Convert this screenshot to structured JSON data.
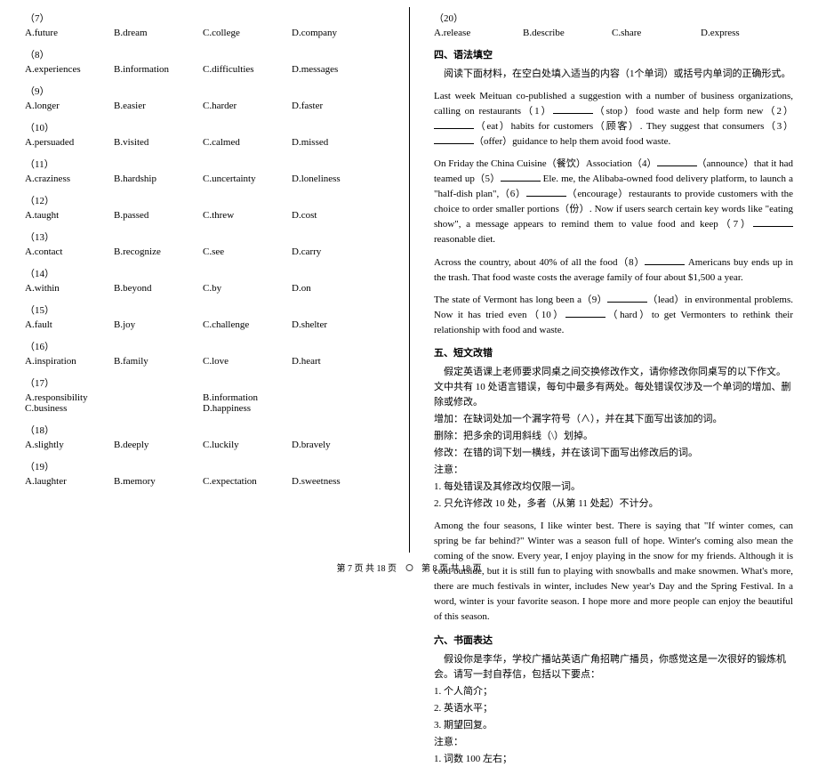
{
  "left": {
    "questions": [
      {
        "num": "（7）",
        "cols": 4,
        "opts": [
          "A.future",
          "B.dream",
          "C.college",
          "D.company"
        ]
      },
      {
        "num": "（8）",
        "cols": 4,
        "opts": [
          "A.experiences",
          "B.information",
          "C.difficulties",
          "D.messages"
        ]
      },
      {
        "num": "（9）",
        "cols": 4,
        "opts": [
          "A.longer",
          "B.easier",
          "C.harder",
          "D.faster"
        ]
      },
      {
        "num": "（10）",
        "cols": 4,
        "opts": [
          "A.persuaded",
          "B.visited",
          "C.calmed",
          "D.missed"
        ]
      },
      {
        "num": "（11）",
        "cols": 4,
        "opts": [
          "A.craziness",
          "B.hardship",
          "C.uncertainty",
          "D.loneliness"
        ]
      },
      {
        "num": "（12）",
        "cols": 4,
        "opts": [
          "A.taught",
          "B.passed",
          "C.threw",
          "D.cost"
        ]
      },
      {
        "num": "（13）",
        "cols": 4,
        "opts": [
          "A.contact",
          "B.recognize",
          "C.see",
          "D.carry"
        ]
      },
      {
        "num": "（14）",
        "cols": 4,
        "opts": [
          "A.within",
          "B.beyond",
          "C.by",
          "D.on"
        ]
      },
      {
        "num": "（15）",
        "cols": 4,
        "opts": [
          "A.fault",
          "B.joy",
          "C.challenge",
          "D.shelter"
        ]
      },
      {
        "num": "（16）",
        "cols": 4,
        "opts": [
          "A.inspiration",
          "B.family",
          "C.love",
          "D.heart"
        ]
      },
      {
        "num": "（17）",
        "cols": 2,
        "opts": [
          "A.responsibility",
          "B.information",
          "C.business",
          "D.happiness"
        ]
      },
      {
        "num": "（18）",
        "cols": 4,
        "opts": [
          "A.slightly",
          "B.deeply",
          "C.luckily",
          "D.bravely"
        ]
      },
      {
        "num": "（19）",
        "cols": 4,
        "opts": [
          "A.laughter",
          "B.memory",
          "C.expectation",
          "D.sweetness"
        ]
      }
    ]
  },
  "right": {
    "q20": {
      "num": "（20）",
      "opts": [
        "A.release",
        "B.describe",
        "C.share",
        "D.express"
      ]
    },
    "sec4_title": "四、语法填空",
    "sec4_instr": "　阅读下面材料，在空白处填入适当的内容（1个单词）或括号内单词的正确形式。",
    "sec4_p1a": "Last week Meituan co-published a suggestion with a number of business organizations, calling on restaurants（1）",
    "sec4_p1b": "（stop）food waste and help form new（2）",
    "sec4_p1c": "（eat）habits for customers（顾客）. They suggest that consumers（3）",
    "sec4_p1d": "（offer）guidance to help them avoid food waste.",
    "sec4_p2a": "On Friday the China Cuisine（餐饮）Association（4）",
    "sec4_p2b": "（announce）that it had teamed up（5）",
    "sec4_p2c": " Ele. me, the Alibaba-owned food delivery platform, to launch a \"half-dish plan\",（6）",
    "sec4_p2d": "（encourage）restaurants to provide customers with the choice to order smaller portions（份）. Now if users search certain key words like \"eating show\", a message appears to remind them to value food and keep（7）",
    "sec4_p2e": " reasonable diet.",
    "sec4_p3a": "Across the country, about 40% of all the food（8）",
    "sec4_p3b": " Americans buy ends up in the trash. That food waste costs the average family of four about $1,500 a year.",
    "sec4_p4a": "The state of Vermont has long been a（9）",
    "sec4_p4b": "（lead）in environmental problems. Now it has tried even（10）",
    "sec4_p4c": "（hard）to get Vermonters to rethink their relationship with food and waste.",
    "sec5_title": "五、短文改错",
    "sec5_instr1": "　假定英语课上老师要求同桌之间交换修改作文，请你修改你同桌写的以下作文。文中共有 10 处语言错误，每句中最多有两处。每处错误仅涉及一个单词的增加、删除或修改。",
    "sec5_instr2": "增加：在缺词处加一个漏字符号（∧），并在其下面写出该加的词。",
    "sec5_instr3": "删除：把多余的词用斜线（\\）划掉。",
    "sec5_instr4": "修改：在错的词下划一横线，并在该词下面写出修改后的词。",
    "sec5_note": "注意：",
    "sec5_note1": "1. 每处错误及其修改均仅限一词。",
    "sec5_note2": "2. 只允许修改 10 处，多者（从第 11 处起）不计分。",
    "sec5_passage": "Among the four seasons, I like winter best. There is saying that \"If winter comes, can spring be far behind?\" Winter was a season full of hope. Winter's coming also mean the coming of the snow. Every year, I enjoy playing in the snow for my friends. Although it is cold outside, but it is still fun to playing with snowballs and make snowmen. What's more, there are much festivals in winter, includes New year's Day and the Spring Festival. In a word, winter is your favorite season. I hope more and more people can enjoy the beautiful of this season.",
    "sec6_title": "六、书面表达",
    "sec6_instr": "　假设你是李华，学校广播站英语广角招聘广播员，你感觉这是一次很好的锻炼机会。请写一封自荐信，包括以下要点：",
    "sec6_pt1": "1. 个人简介；",
    "sec6_pt2": "2. 英语水平；",
    "sec6_pt3": "3. 期望回复。",
    "sec6_note": "注意：",
    "sec6_note1": "1. 词数 100 左右；",
    "footer_left": "第 7 页 共 18 页",
    "footer_right": "第 8 页 共 18 页"
  }
}
